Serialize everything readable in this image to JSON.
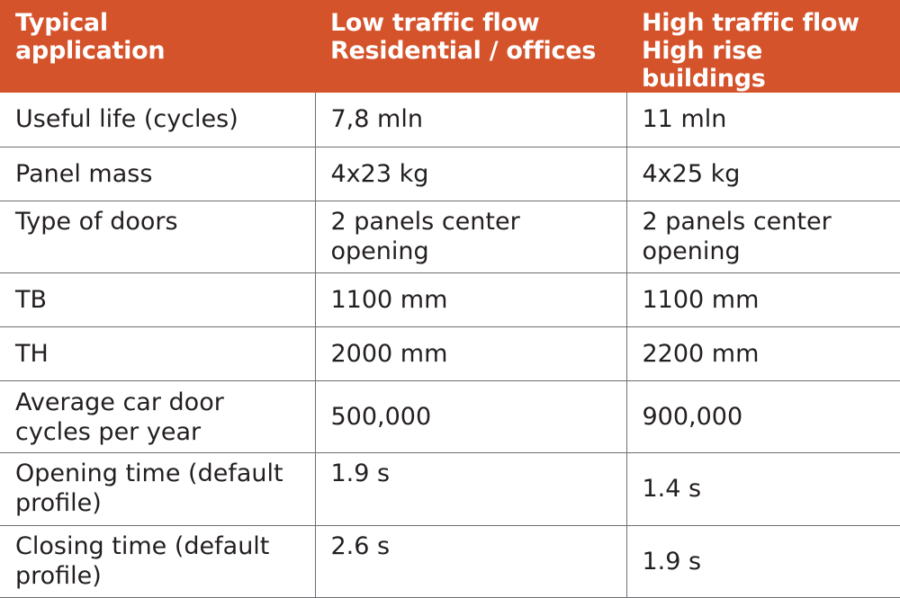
{
  "table": {
    "headers": [
      "Typical\napplication",
      "Low traffic flow\nResidential / offices",
      "High traffic flow\nHigh rise buildings"
    ],
    "rows": [
      [
        "Useful life (cycles)",
        "7,8 mln",
        "11 mln"
      ],
      [
        "Panel mass",
        "4x23 kg",
        "4x25 kg"
      ],
      [
        "Type of doors",
        "2 panels center\nopening",
        "2 panels center\nopening"
      ],
      [
        "TB",
        "1100 mm",
        "1100 mm"
      ],
      [
        "TH",
        "2000 mm",
        "2200 mm"
      ],
      [
        "Average car door\ncycles per year",
        "500,000",
        "900,000"
      ],
      [
        "Opening time (default\nprofile)",
        "1.9 s",
        "1.4 s"
      ],
      [
        "Closing time (default\nprofile)",
        "2.6 s",
        "1.9 s"
      ]
    ]
  },
  "colors": {
    "header_bg": "#d4532b",
    "header_text": "#ffffff",
    "grid_lines": "#6d6e71",
    "body_text": "#231f20"
  }
}
